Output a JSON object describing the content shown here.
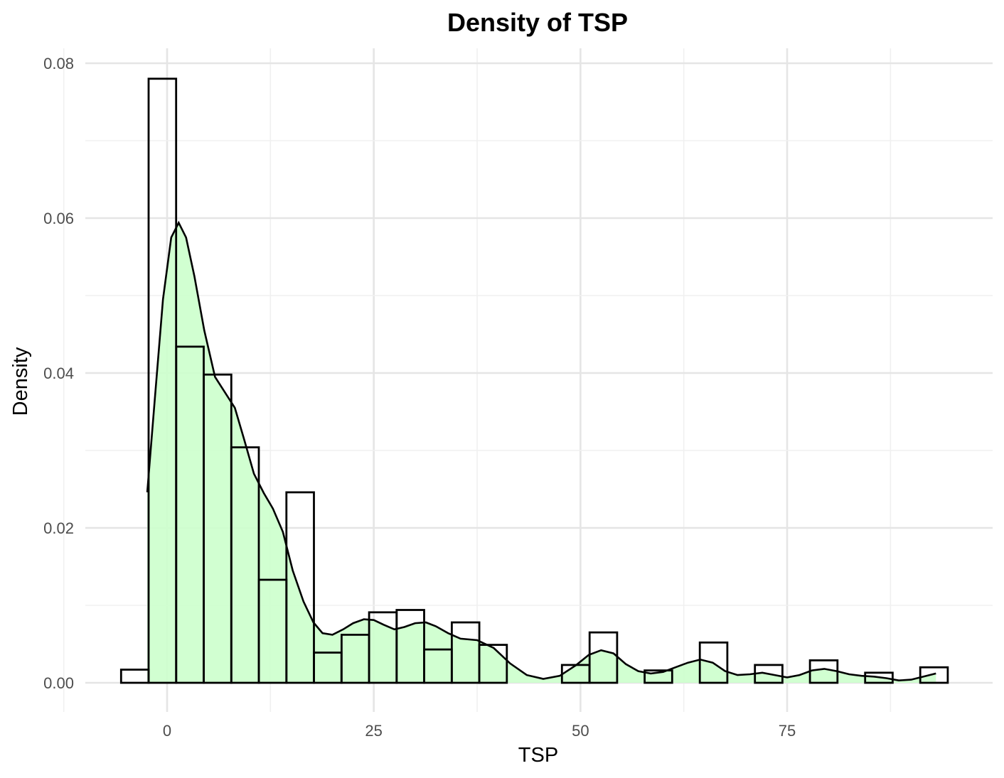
{
  "chart_data": {
    "type": "bar",
    "title": "Density of TSP",
    "xlabel": "TSP",
    "ylabel": "Density",
    "xlim": [
      -10,
      100
    ],
    "ylim": [
      0,
      0.082
    ],
    "x_ticks": [
      0,
      25,
      50,
      75
    ],
    "x_tick_labels": [
      "0",
      "25",
      "50",
      "75"
    ],
    "y_ticks": [
      0,
      0.02,
      0.04,
      0.06,
      0.08
    ],
    "y_tick_labels": [
      "0.00",
      "0.02",
      "0.04",
      "0.06",
      "0.08"
    ],
    "grid": true,
    "colors": {
      "density_fill": "#ccffcc",
      "density_fill_opacity": 0.9,
      "outline": "#000000",
      "grid": "#e5e5e5"
    },
    "histogram": {
      "bin_width": 3.33,
      "bin_centers": [
        -3.9,
        -0.57,
        2.77,
        6.1,
        9.43,
        12.77,
        16.1,
        19.43,
        22.77,
        26.1,
        29.43,
        32.77,
        36.1,
        39.43,
        42.77,
        46.1,
        49.43,
        52.77,
        56.1,
        59.43,
        62.77,
        66.1,
        69.43,
        72.77,
        76.1,
        79.43,
        82.77,
        86.1,
        89.43,
        92.77
      ],
      "density": [
        0.0017,
        0.078,
        0.0434,
        0.0398,
        0.0304,
        0.0133,
        0.0246,
        0.0039,
        0.0062,
        0.0091,
        0.0094,
        0.0043,
        0.0078,
        0.0049,
        0.0,
        0.0,
        0.0023,
        0.0065,
        0.0,
        0.0016,
        0.0,
        0.0052,
        0.0,
        0.0023,
        0.0,
        0.0029,
        0.0,
        0.0013,
        0.0,
        0.002
      ]
    },
    "density_curve": {
      "x": [
        -2.4,
        -1.5,
        -0.5,
        0.5,
        1.4,
        2.3,
        3.3,
        4.5,
        5.8,
        7.0,
        8.2,
        9.3,
        10.5,
        11.7,
        12.8,
        14.0,
        15.2,
        16.5,
        17.7,
        18.8,
        20.0,
        21.3,
        22.5,
        23.8,
        25.0,
        26.2,
        27.5,
        28.7,
        30.0,
        31.3,
        32.5,
        34.0,
        35.5,
        37.5,
        39.5,
        41.5,
        43.5,
        45.5,
        47.5,
        49.5,
        51.0,
        52.5,
        54.0,
        55.5,
        57.0,
        58.5,
        60.0,
        61.5,
        63.0,
        64.5,
        66.0,
        67.5,
        69.0,
        70.5,
        72.0,
        73.5,
        75.0,
        76.5,
        78.0,
        79.5,
        81.0,
        82.5,
        84.0,
        85.5,
        87.0,
        88.5,
        90.0,
        91.5,
        93.0
      ],
      "y": [
        0.0246,
        0.0365,
        0.0495,
        0.0575,
        0.0594,
        0.0575,
        0.0525,
        0.0455,
        0.0395,
        0.0375,
        0.0355,
        0.0315,
        0.027,
        0.0245,
        0.0225,
        0.0195,
        0.0145,
        0.0105,
        0.0078,
        0.0064,
        0.0062,
        0.0069,
        0.0077,
        0.0082,
        0.0081,
        0.0075,
        0.0069,
        0.0072,
        0.0077,
        0.0078,
        0.0073,
        0.0064,
        0.0057,
        0.0055,
        0.0045,
        0.0025,
        0.001,
        0.0005,
        0.0009,
        0.0023,
        0.0036,
        0.0042,
        0.0038,
        0.0024,
        0.0015,
        0.0012,
        0.0014,
        0.002,
        0.0026,
        0.003,
        0.0026,
        0.0015,
        0.001,
        0.0011,
        0.0013,
        0.001,
        0.0007,
        0.001,
        0.0016,
        0.0018,
        0.0015,
        0.0011,
        0.0009,
        0.0008,
        0.0006,
        0.0003,
        0.0004,
        0.0008,
        0.0012
      ]
    }
  }
}
